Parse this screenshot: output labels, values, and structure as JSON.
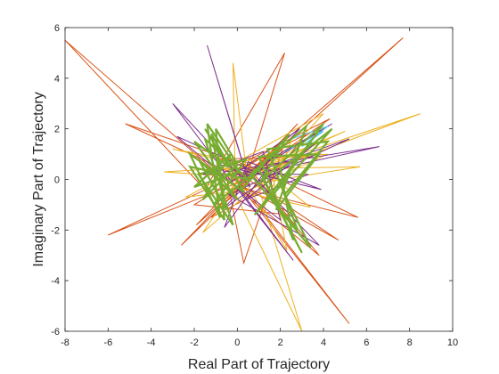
{
  "chart_data": {
    "type": "line",
    "title": "",
    "xlabel": "Real Part of Trajectory",
    "ylabel": "Imaginary Part of Trajectory",
    "xlim": [
      -8,
      10
    ],
    "ylim": [
      -6,
      6
    ],
    "xticks": [
      -8,
      -6,
      -4,
      -2,
      0,
      2,
      4,
      6,
      8,
      10
    ],
    "yticks": [
      -6,
      -4,
      -2,
      0,
      2,
      4,
      6
    ],
    "xtick_labels": [
      "-8",
      "-6",
      "-4",
      "-2",
      "0",
      "2",
      "4",
      "6",
      "8",
      "10"
    ],
    "ytick_labels": [
      "-6",
      "-4",
      "-2",
      "0",
      "2",
      "4",
      "6"
    ],
    "grid": false,
    "legend": "none",
    "series": [
      {
        "color": "#D95319",
        "points": [
          [
            -1.0,
            0.3
          ],
          [
            -8.0,
            5.5
          ],
          [
            -1.5,
            -0.4
          ],
          [
            2.2,
            5.0
          ],
          [
            0.4,
            0.0
          ],
          [
            -6.0,
            -2.2
          ],
          [
            0.8,
            0.5
          ],
          [
            7.7,
            5.6
          ],
          [
            0.2,
            -0.2
          ],
          [
            5.2,
            -5.7
          ],
          [
            -0.4,
            0.3
          ],
          [
            -5.2,
            2.2
          ],
          [
            1.0,
            0.4
          ],
          [
            5.6,
            -1.5
          ],
          [
            0.0,
            -0.3
          ],
          [
            -2.6,
            -2.6
          ],
          [
            1.3,
            0.6
          ],
          [
            4.3,
            2.4
          ],
          [
            -0.8,
            0.2
          ],
          [
            3.8,
            -3.0
          ],
          [
            0.6,
            0.4
          ],
          [
            -1.9,
            -1.8
          ],
          [
            2.1,
            1.2
          ],
          [
            0.3,
            -3.3
          ],
          [
            -0.5,
            0.1
          ],
          [
            3.2,
            1.8
          ],
          [
            1.0,
            -0.5
          ],
          [
            -1.2,
            -1.5
          ],
          [
            2.8,
            2.2
          ],
          [
            0.1,
            -0.2
          ],
          [
            4.7,
            -2.4
          ],
          [
            -0.9,
            0.8
          ],
          [
            3.5,
            0.9
          ],
          [
            0.4,
            0.3
          ],
          [
            -2.0,
            -1.0
          ],
          [
            2.4,
            -1.4
          ]
        ]
      },
      {
        "color": "#EDB120",
        "points": [
          [
            0.4,
            0.3
          ],
          [
            8.5,
            2.6
          ],
          [
            -0.3,
            -0.2
          ],
          [
            3.0,
            -6.0
          ],
          [
            0.7,
            0.5
          ],
          [
            -3.4,
            0.3
          ],
          [
            -0.1,
            0.1
          ],
          [
            -0.2,
            4.6
          ],
          [
            0.5,
            -0.2
          ],
          [
            5.7,
            0.5
          ],
          [
            -0.6,
            0.4
          ],
          [
            4.0,
            2.6
          ],
          [
            1.1,
            -0.1
          ],
          [
            -1.6,
            -2.1
          ],
          [
            0.2,
            0.2
          ],
          [
            5.0,
            1.9
          ],
          [
            -0.8,
            -0.3
          ],
          [
            3.4,
            -1.1
          ],
          [
            0.9,
            0.6
          ],
          [
            -3.0,
            1.2
          ],
          [
            1.6,
            0.3
          ],
          [
            2.3,
            -2.8
          ],
          [
            -0.2,
            0.7
          ],
          [
            4.2,
            1.0
          ],
          [
            0.6,
            -0.4
          ],
          [
            -2.4,
            -0.7
          ],
          [
            2.5,
            1.5
          ],
          [
            1.2,
            -1.2
          ]
        ]
      },
      {
        "color": "#7E2F8E",
        "points": [
          [
            0.2,
            0.1
          ],
          [
            6.6,
            1.3
          ],
          [
            -0.6,
            0.3
          ],
          [
            -3.0,
            3.0
          ],
          [
            0.6,
            -0.3
          ],
          [
            -1.4,
            5.3
          ],
          [
            0.3,
            0.5
          ],
          [
            3.8,
            -2.6
          ],
          [
            -0.4,
            -0.6
          ],
          [
            5.2,
            1.6
          ],
          [
            0.8,
            0.3
          ],
          [
            -2.8,
            1.7
          ],
          [
            0.1,
            -0.4
          ],
          [
            2.6,
            -3.2
          ],
          [
            -0.9,
            0.6
          ],
          [
            3.9,
            -0.4
          ],
          [
            0.5,
            0.7
          ],
          [
            -0.6,
            -1.9
          ],
          [
            1.7,
            0.8
          ],
          [
            4.4,
            2.2
          ],
          [
            -0.3,
            -0.1
          ],
          [
            2.0,
            -1.6
          ],
          [
            1.2,
            1.1
          ],
          [
            -1.6,
            0.2
          ],
          [
            3.3,
            0.2
          ],
          [
            0.4,
            -0.8
          ],
          [
            3.6,
            1.4
          ],
          [
            -0.7,
            -1.2
          ],
          [
            2.9,
            2.0
          ],
          [
            0.2,
            0.4
          ]
        ]
      },
      {
        "color": "#4DBEEE",
        "points": [
          [
            2.5,
            1.6
          ],
          [
            4.2,
            2.1
          ],
          [
            3.0,
            1.3
          ],
          [
            4.0,
            1.9
          ],
          [
            2.2,
            1.1
          ]
        ]
      },
      {
        "color": "#77AC30",
        "width": 2.2,
        "points": [
          [
            -1.5,
            2.0
          ],
          [
            -0.4,
            0.5
          ],
          [
            -2.0,
            1.5
          ],
          [
            0.0,
            -0.8
          ],
          [
            -1.8,
            0.8
          ],
          [
            -0.5,
            -1.2
          ],
          [
            -1.2,
            1.8
          ],
          [
            0.3,
            -0.5
          ],
          [
            -2.2,
            1.0
          ],
          [
            -0.8,
            -1.5
          ],
          [
            -1.4,
            2.2
          ],
          [
            0.1,
            0.3
          ],
          [
            -2.0,
            -0.3
          ],
          [
            -0.3,
            1.0
          ],
          [
            -1.6,
            -0.8
          ],
          [
            0.0,
            0.6
          ],
          [
            -1.0,
            2.0
          ],
          [
            -0.6,
            -1.6
          ],
          [
            -2.2,
            0.5
          ],
          [
            0.5,
            0.0
          ],
          [
            -1.5,
            1.6
          ],
          [
            -0.2,
            -1.8
          ],
          [
            -1.8,
            0.2
          ],
          [
            0.4,
            0.8
          ],
          [
            -1.1,
            -1.0
          ],
          [
            1.0,
            0.4
          ],
          [
            3.0,
            -2.9
          ],
          [
            1.2,
            0.0
          ],
          [
            4.0,
            2.2
          ],
          [
            1.5,
            -0.8
          ],
          [
            3.5,
            1.6
          ],
          [
            0.8,
            -1.4
          ],
          [
            4.4,
            2.0
          ],
          [
            2.0,
            0.4
          ],
          [
            2.6,
            -2.4
          ],
          [
            1.0,
            0.9
          ],
          [
            3.8,
            1.0
          ],
          [
            1.8,
            -1.2
          ],
          [
            3.2,
            2.1
          ],
          [
            0.6,
            0.2
          ],
          [
            2.8,
            -2.0
          ],
          [
            1.4,
            1.2
          ],
          [
            4.2,
            1.5
          ],
          [
            2.2,
            -0.6
          ],
          [
            3.4,
            -2.7
          ],
          [
            1.0,
            -0.2
          ],
          [
            2.4,
            1.8
          ],
          [
            0.2,
            -0.4
          ]
        ]
      }
    ]
  }
}
